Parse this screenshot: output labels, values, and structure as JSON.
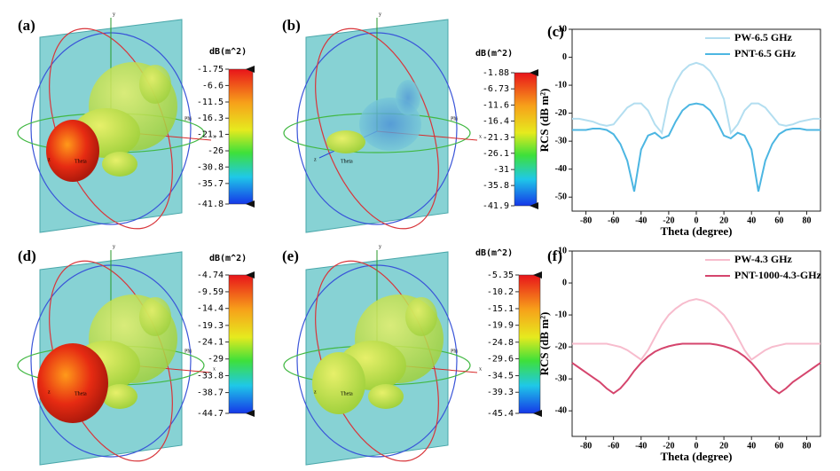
{
  "panels": [
    {
      "label": "(a)",
      "colorbar_title": "dB(m^2)",
      "colorbar_ticks": [
        -1.75,
        -6.6,
        -11.5,
        -16.3,
        -21.1,
        -26,
        -30.8,
        -35.7,
        -41.8
      ],
      "axis_labels": [
        "y",
        "x",
        "z",
        "Theta",
        "Phi"
      ]
    },
    {
      "label": "(b)",
      "colorbar_title": "dB(m^2)",
      "colorbar_ticks": [
        -1.88,
        -6.73,
        -11.6,
        -16.4,
        -21.3,
        -26.1,
        -31,
        -35.8,
        -41.9
      ],
      "axis_labels": [
        "y",
        "x",
        "z",
        "Theta",
        "Phi"
      ]
    },
    {
      "label": "(d)",
      "colorbar_title": "dB(m^2)",
      "colorbar_ticks": [
        -4.74,
        -9.59,
        -14.4,
        -19.3,
        -24.1,
        -29,
        -33.8,
        -38.7,
        -44.7
      ],
      "axis_labels": [
        "y",
        "x",
        "z",
        "Theta",
        "Phi"
      ]
    },
    {
      "label": "(e)",
      "colorbar_title": "dB(m^2)",
      "colorbar_ticks": [
        -5.35,
        -10.2,
        -15.1,
        -19.9,
        -24.8,
        -29.6,
        -34.5,
        -39.3,
        -45.4
      ],
      "axis_labels": [
        "y",
        "x",
        "z",
        "Theta",
        "Phi"
      ]
    }
  ],
  "chart_data": [
    {
      "type": "line",
      "title": "(c)",
      "x_label": "Theta (degree)",
      "y_label": "RCS (dB m²)",
      "x": [
        -90,
        -85,
        -80,
        -75,
        -70,
        -65,
        -60,
        -55,
        -50,
        -45,
        -40,
        -35,
        -30,
        -25,
        -20,
        -15,
        -10,
        -5,
        0,
        5,
        10,
        15,
        20,
        25,
        30,
        35,
        40,
        45,
        50,
        55,
        60,
        65,
        70,
        75,
        80,
        85,
        90
      ],
      "series": [
        {
          "name": "PW-6.5 GHz",
          "color": "#b3def0",
          "values": [
            -22,
            -22,
            -22.5,
            -23,
            -24,
            -24.5,
            -24,
            -21,
            -18,
            -16.5,
            -16.5,
            -19,
            -24,
            -27,
            -15,
            -9,
            -5,
            -2.8,
            -2,
            -2.8,
            -5,
            -9,
            -15,
            -27,
            -24,
            -19,
            -16.5,
            -16.5,
            -18,
            -21,
            -24,
            -24.5,
            -24,
            -23,
            -22.5,
            -22,
            -22
          ]
        },
        {
          "name": "PNT-6.5 GHz",
          "color": "#4cb6e2",
          "values": [
            -26,
            -26,
            -26,
            -25.5,
            -25.5,
            -26,
            -27.5,
            -31,
            -37,
            -48,
            -33,
            -28,
            -27,
            -29,
            -28,
            -23,
            -19,
            -17,
            -16.5,
            -17,
            -19,
            -23,
            -28,
            -29,
            -27,
            -28,
            -33,
            -48,
            -37,
            -31,
            -27.5,
            -26,
            -25.5,
            -25.5,
            -26,
            -26,
            -26
          ]
        }
      ],
      "xlim": [
        -90,
        90
      ],
      "xticks": [
        -80,
        -60,
        -40,
        -20,
        0,
        20,
        40,
        60,
        80
      ],
      "ylim": [
        -55,
        10
      ],
      "yticks": [
        10,
        0,
        -10,
        -20,
        -30,
        -40,
        -50
      ],
      "legend": "upper right",
      "grid": false
    },
    {
      "type": "line",
      "title": "(f)",
      "x_label": "Theta (degree)",
      "y_label": "RCS (dB m²)",
      "x": [
        -90,
        -85,
        -80,
        -75,
        -70,
        -65,
        -60,
        -55,
        -50,
        -45,
        -40,
        -35,
        -30,
        -25,
        -20,
        -15,
        -10,
        -5,
        0,
        5,
        10,
        15,
        20,
        25,
        30,
        35,
        40,
        45,
        50,
        55,
        60,
        65,
        70,
        75,
        80,
        85,
        90
      ],
      "series": [
        {
          "name": "PW-4.3 GHz",
          "color": "#f7bccd",
          "values": [
            -19,
            -19,
            -19,
            -19,
            -19,
            -19,
            -19.5,
            -20,
            -21,
            -22.5,
            -24,
            -21,
            -17,
            -13,
            -10,
            -8,
            -6.5,
            -5.5,
            -5,
            -5.5,
            -6.5,
            -8,
            -10,
            -13,
            -17,
            -21,
            -24,
            -22.5,
            -21,
            -20,
            -19.5,
            -19,
            -19,
            -19,
            -19,
            -19,
            -19
          ]
        },
        {
          "name": "PNT-1000-4.3-GHz",
          "color": "#d5456d",
          "values": [
            -25,
            -26.5,
            -28,
            -29.5,
            -31,
            -33,
            -34.5,
            -33,
            -30.5,
            -27.5,
            -25,
            -23,
            -21.5,
            -20.5,
            -19.8,
            -19.3,
            -19,
            -19,
            -19,
            -19,
            -19,
            -19.3,
            -19.8,
            -20.5,
            -21.5,
            -23,
            -25,
            -27.5,
            -30.5,
            -33,
            -34.5,
            -33,
            -31,
            -29.5,
            -28,
            -26.5,
            -25
          ]
        }
      ],
      "xlim": [
        -90,
        90
      ],
      "xticks": [
        -80,
        -60,
        -40,
        -20,
        0,
        20,
        40,
        60,
        80
      ],
      "ylim": [
        -48,
        10
      ],
      "yticks": [
        10,
        0,
        -10,
        -20,
        -30,
        -40
      ],
      "legend": "upper right",
      "grid": false
    }
  ]
}
